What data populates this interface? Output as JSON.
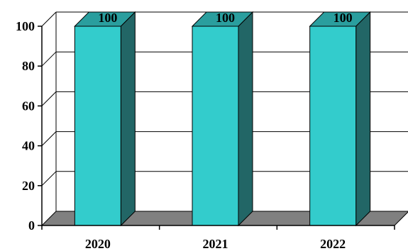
{
  "chart_data": {
    "type": "bar",
    "title": "",
    "xlabel": "",
    "ylabel": "",
    "categories": [
      "2020",
      "2021",
      "2022"
    ],
    "values": [
      100,
      100,
      100
    ],
    "data_labels": [
      "100",
      "100",
      "100"
    ],
    "ylim": [
      0,
      100
    ],
    "yticks": [
      0,
      20,
      40,
      60,
      80,
      100
    ],
    "ytick_labels": [
      "0",
      "20",
      "40",
      "60",
      "80",
      "100"
    ],
    "grid": "horizontal",
    "legend": "none",
    "style": "3d",
    "colors": {
      "bar_front": "#33CCCC",
      "bar_top": "#2A9E9E",
      "bar_side": "#226666",
      "floor": "#808080",
      "gridline": "#000000"
    }
  }
}
